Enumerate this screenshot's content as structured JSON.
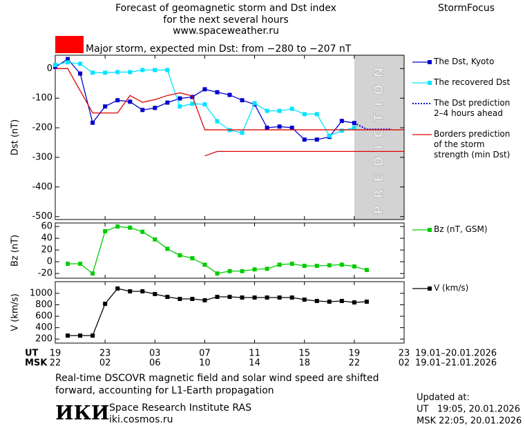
{
  "header": {
    "title": "Forecast of geomagnetic storm and Dst index",
    "subtitle": "for the next several hours",
    "url": "www.spaceweather.ru",
    "brand": "StormFocus",
    "storm_color": "#ff0000",
    "storm_note": "Major storm, expected min Dst: from −280 to −207 nT"
  },
  "chart_data": [
    {
      "type": "line",
      "ylabel": "Dst (nT)",
      "xlim": [
        0,
        28
      ],
      "ylim": [
        -510,
        45
      ],
      "yticks": [
        0,
        -100,
        -200,
        -300,
        -400,
        -500
      ],
      "legend": "right",
      "prediction_region": {
        "label": "PREDICTION",
        "xlim": [
          24,
          28
        ],
        "color": "#d3d3d3"
      },
      "series": [
        {
          "name": "The Dst, Kyoto",
          "color": "#0000cc",
          "marker": "square",
          "x": [
            0,
            1,
            2,
            3,
            4,
            5,
            6,
            7,
            8,
            9,
            10,
            11,
            12,
            13,
            14,
            15,
            16,
            17,
            18,
            19,
            20,
            21,
            22,
            23,
            24
          ],
          "values": [
            5,
            32,
            -17,
            -183,
            -128,
            -107,
            -112,
            -140,
            -133,
            -115,
            -101,
            -96,
            -70,
            -80,
            -89,
            -107,
            -121,
            -200,
            -196,
            -200,
            -240,
            -240,
            -231,
            -177,
            -184
          ]
        },
        {
          "name": "The recovered Dst",
          "color": "#00e5ff",
          "marker": "square",
          "x": [
            0,
            1,
            2,
            3,
            4,
            5,
            6,
            7,
            8,
            9,
            10,
            11,
            12,
            13,
            14,
            15,
            16,
            17,
            18,
            19,
            20,
            21,
            22,
            23,
            24
          ],
          "values": [
            12,
            21,
            16,
            -14,
            -14,
            -12,
            -12,
            -5,
            -5,
            -5,
            -128,
            -119,
            -121,
            -178,
            -208,
            -217,
            -117,
            -143,
            -143,
            -136,
            -154,
            -154,
            -227,
            -210,
            -200
          ]
        },
        {
          "name": "The Dst prediction\n2–4 hours ahead",
          "color": "#0000cc",
          "line_style": "dotted",
          "x": [
            24,
            25,
            26,
            27
          ],
          "values": [
            -184,
            -205,
            -205,
            -205
          ]
        },
        {
          "name": "Borders prediction\nof the storm\nstrength (min Dst)",
          "color": "#dd0000",
          "x": [
            0,
            1,
            3,
            5,
            6,
            7,
            8,
            9,
            10,
            11,
            12,
            28,
            null,
            12,
            13,
            28
          ],
          "values": [
            0,
            0,
            -150,
            -150,
            -91,
            -114,
            -105,
            -91,
            -82,
            -93,
            -207,
            -207,
            null,
            -295,
            -280,
            -280
          ]
        }
      ]
    },
    {
      "type": "line",
      "ylabel": "Bz (nT)",
      "xlim": [
        0,
        28
      ],
      "ylim": [
        -28,
        66
      ],
      "yticks": [
        60,
        40,
        20,
        0,
        -20
      ],
      "legend": "right",
      "series": [
        {
          "name": "Bz (nT, GSM)",
          "color": "#00cc00",
          "marker": "square",
          "x": [
            1,
            2,
            3,
            4,
            5,
            6,
            7,
            8,
            9,
            10,
            11,
            12,
            13,
            14,
            15,
            16,
            17,
            18,
            19,
            20,
            21,
            22,
            23,
            24,
            25
          ],
          "values": [
            -3.5,
            -3.5,
            -20,
            52,
            60,
            58,
            51,
            38,
            22,
            11,
            6,
            -5,
            -20,
            -16,
            -16,
            -13,
            -12,
            -5,
            -3.5,
            -7,
            -7,
            -6,
            -5,
            -8,
            -14
          ]
        }
      ]
    },
    {
      "type": "line",
      "ylabel": "V (km/s)",
      "xlim": [
        0,
        28
      ],
      "ylim": [
        130,
        1205
      ],
      "yticks": [
        1000,
        800,
        600,
        400,
        200
      ],
      "legend": "right",
      "x_label_ut": "UT",
      "x_label_msk": "MSK",
      "date_range_ut": "19.01–20.01.2026",
      "date_range_msk": "19.01–21.01.2026",
      "xticks": [
        {
          "value": 0,
          "label": "19"
        },
        {
          "value": 4,
          "label": "23"
        },
        {
          "value": 8,
          "label": "03"
        },
        {
          "value": 12,
          "label": "07"
        },
        {
          "value": 16,
          "label": "11"
        },
        {
          "value": 20,
          "label": "15"
        },
        {
          "value": 24,
          "label": "19"
        },
        {
          "value": 28,
          "label": "23"
        }
      ],
      "xticks_msk": [
        {
          "value": 0,
          "label": "22"
        },
        {
          "value": 4,
          "label": "02"
        },
        {
          "value": 8,
          "label": "06"
        },
        {
          "value": 12,
          "label": "10"
        },
        {
          "value": 16,
          "label": "14"
        },
        {
          "value": 20,
          "label": "18"
        },
        {
          "value": 24,
          "label": "22"
        },
        {
          "value": 28,
          "label": "02"
        }
      ],
      "series": [
        {
          "name": "V (km/s)",
          "color": "#000000",
          "marker": "square",
          "x": [
            1,
            2,
            3,
            4,
            5,
            6,
            7,
            8,
            9,
            10,
            11,
            12,
            13,
            14,
            15,
            16,
            17,
            18,
            19,
            20,
            21,
            22,
            23,
            24,
            25
          ],
          "values": [
            261,
            261,
            261,
            818,
            1085,
            1036,
            1036,
            988,
            939,
            903,
            903,
            879,
            939,
            939,
            927,
            927,
            927,
            927,
            927,
            891,
            867,
            855,
            867,
            842,
            855
          ]
        }
      ]
    }
  ],
  "footer": {
    "note": "Real-time DSCOVR magnetic field and solar wind speed are shifted\nforward, accounting for L1-Earth propagation",
    "logo": "ИКИ",
    "institute": "Space Research Institute RAS",
    "site": "iki.cosmos.ru",
    "updated_label": "Updated at:",
    "updated_ut": "UT   19:05, 20.01.2026",
    "updated_msk": "MSK 22:05, 20.01.2026"
  }
}
